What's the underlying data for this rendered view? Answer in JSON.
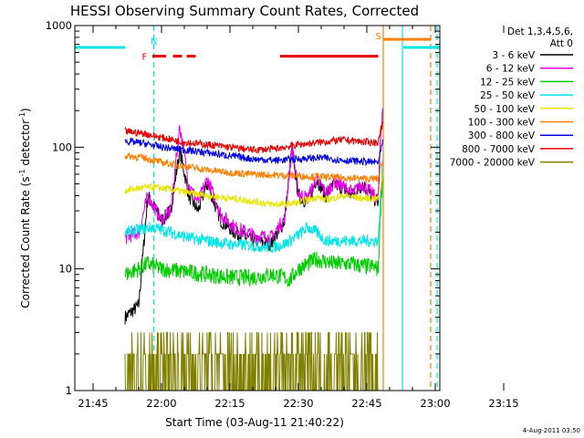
{
  "chart_data": {
    "type": "line",
    "title": "HESSI Observing Summary Count Rates, Corrected",
    "xlabel": "Start Time (03-Aug-11 21:40:22)",
    "ylabel": "Corrected Count Rate (s⁻¹ detector⁻¹)",
    "ylabel_main": "Corrected Count Rate (s",
    "ylabel_sup1": "-1",
    "ylabel_mid": " detector",
    "ylabel_sup2": "-1",
    "ylabel_end": ")",
    "yscale": "log",
    "ylim": [
      1,
      1000
    ],
    "xlim_minutes": [
      21.0,
      101.0
    ],
    "x_ticks": [
      {
        "label": "21:45",
        "min": 25
      },
      {
        "label": "22:00",
        "min": 40
      },
      {
        "label": "22:15",
        "min": 55
      },
      {
        "label": "22:30",
        "min": 70
      },
      {
        "label": "22:45",
        "min": 85
      },
      {
        "label": "23:00",
        "min": 100
      },
      {
        "label": "23:15",
        "min": 115
      }
    ],
    "y_ticks": [
      {
        "label": "1",
        "v": 1
      },
      {
        "label": "10",
        "v": 10
      },
      {
        "label": "100",
        "v": 100
      },
      {
        "label": "1000",
        "v": 1000
      }
    ],
    "legend_title_1": "Det 1,3,4,5,6,",
    "legend_title_2": "Att 0",
    "series": [
      {
        "name": "3 - 6 keV",
        "color": "#000000",
        "x": [
          32,
          35,
          37,
          40,
          42,
          44,
          46,
          48,
          50,
          53,
          56,
          60,
          64,
          67,
          68.6,
          70,
          72,
          74,
          76,
          78,
          80,
          82,
          84,
          86,
          87.5,
          88,
          88.5
        ],
        "y": [
          4,
          5,
          40,
          25,
          30,
          95,
          40,
          30,
          50,
          25,
          20,
          17,
          16,
          25,
          100,
          40,
          35,
          55,
          40,
          50,
          45,
          40,
          50,
          40,
          35,
          120,
          200
        ]
      },
      {
        "name": "6 - 12 keV",
        "color": "#e600e6",
        "x": [
          32,
          35,
          37,
          40,
          42,
          44,
          46,
          48,
          50,
          53,
          56,
          60,
          64,
          67,
          68.6,
          70,
          72,
          74,
          76,
          78,
          80,
          82,
          84,
          86,
          87.5,
          88,
          88.5
        ],
        "y": [
          18,
          20,
          40,
          25,
          30,
          150,
          50,
          35,
          55,
          28,
          22,
          19,
          18,
          26,
          100,
          42,
          38,
          55,
          42,
          52,
          47,
          42,
          50,
          42,
          37,
          120,
          210
        ]
      },
      {
        "name": "12 - 25 keV",
        "color": "#00cc00",
        "x": [
          32,
          35,
          37,
          40,
          45,
          50,
          55,
          60,
          64,
          67,
          68,
          70,
          72,
          74,
          76,
          78,
          80,
          82,
          84,
          86,
          87.5,
          88,
          88.5
        ],
        "y": [
          9,
          10,
          11,
          10,
          9.5,
          9,
          8.5,
          8.5,
          9,
          8.5,
          8,
          10,
          11,
          12,
          11.5,
          11,
          11,
          11,
          10.5,
          10.5,
          10,
          30,
          60
        ]
      },
      {
        "name": "25 - 50 keV",
        "color": "#00e6e6",
        "x": [
          32,
          35,
          38,
          42,
          46,
          50,
          55,
          60,
          64,
          67,
          70,
          72,
          74,
          76,
          80,
          84,
          87.5,
          88,
          88.5
        ],
        "y": [
          20,
          21,
          22,
          20,
          18,
          17,
          16,
          15.5,
          15,
          16,
          19,
          22,
          20,
          17,
          17,
          17,
          17,
          40,
          80
        ]
      },
      {
        "name": "50 - 100 keV",
        "color": "#e6e600",
        "x": [
          32,
          35,
          38,
          42,
          46,
          50,
          55,
          60,
          64,
          67,
          70,
          72,
          74,
          76,
          80,
          84,
          87.5,
          88.5
        ],
        "y": [
          44,
          46,
          47,
          45,
          42,
          40,
          38,
          36,
          34,
          34,
          35,
          37,
          39,
          37,
          40,
          38,
          38,
          60
        ]
      },
      {
        "name": "100 - 300 keV",
        "color": "#ff7f00",
        "x": [
          32,
          36,
          40,
          45,
          50,
          55,
          60,
          65,
          70,
          75,
          80,
          85,
          87.5,
          88.5
        ],
        "y": [
          85,
          82,
          75,
          70,
          65,
          62,
          60,
          59,
          58,
          57,
          56,
          55,
          55,
          80
        ]
      },
      {
        "name": "300 - 800 keV",
        "color": "#0000e6",
        "x": [
          32,
          36,
          40,
          45,
          50,
          55,
          60,
          65,
          70,
          75,
          80,
          85,
          87.5,
          88.5
        ],
        "y": [
          112,
          108,
          100,
          95,
          90,
          85,
          80,
          78,
          80,
          82,
          78,
          76,
          75,
          110
        ]
      },
      {
        "name": "800 - 7000 keV",
        "color": "#e60000",
        "x": [
          32,
          36,
          40,
          45,
          50,
          55,
          60,
          65,
          70,
          75,
          80,
          85,
          87.5,
          88.5
        ],
        "y": [
          135,
          130,
          120,
          110,
          105,
          100,
          95,
          97,
          105,
          110,
          115,
          110,
          110,
          160
        ]
      },
      {
        "name": "7000 - 20000 keV",
        "color": "#808000",
        "x": [
          32,
          34,
          36,
          38,
          40,
          45,
          50,
          55,
          60,
          65,
          70,
          72,
          74,
          76,
          80,
          84,
          87.5
        ],
        "y": [
          1,
          2,
          2.5,
          2.2,
          2,
          1.8,
          1.5,
          1.5,
          1.5,
          1.6,
          2.2,
          2.8,
          2.6,
          2.5,
          2.3,
          2.2,
          2.0
        ]
      }
    ],
    "annotations": [
      {
        "label": "N",
        "color": "#00e6e6",
        "x_min": 37.6,
        "y": 750
      },
      {
        "label": "F",
        "color": "#e60000",
        "x_min": 35.7,
        "y": 560
      },
      {
        "label": "S",
        "color": "#ff7f00",
        "x_min": 86.9,
        "y": 830
      }
    ],
    "bars": [
      {
        "color": "#00e6e6",
        "y": 660,
        "segments": [
          [
            21,
            32
          ],
          [
            93,
            101
          ]
        ]
      },
      {
        "color": "#e60000",
        "y": 560,
        "segments": [
          [
            38,
            41
          ],
          [
            42.5,
            44.5
          ],
          [
            45.5,
            47.5
          ],
          [
            66,
            87.5
          ]
        ]
      },
      {
        "color": "#ff7f00",
        "y": 770,
        "segments": [
          [
            88.5,
            99
          ]
        ]
      }
    ],
    "vlines": [
      {
        "x_min": 38.3,
        "color": "#00e6e6",
        "dash": true
      },
      {
        "x_min": 88.6,
        "color": "#ff7f00",
        "dash": false
      },
      {
        "x_min": 92.8,
        "color": "#00e6e6",
        "dash": false
      },
      {
        "x_min": 99.0,
        "color": "#ff7f00",
        "dash": true
      },
      {
        "x_min": 100.4,
        "color": "#00e6e6",
        "dash": true
      }
    ]
  },
  "timestamp": "4-Aug-2011 03:50"
}
